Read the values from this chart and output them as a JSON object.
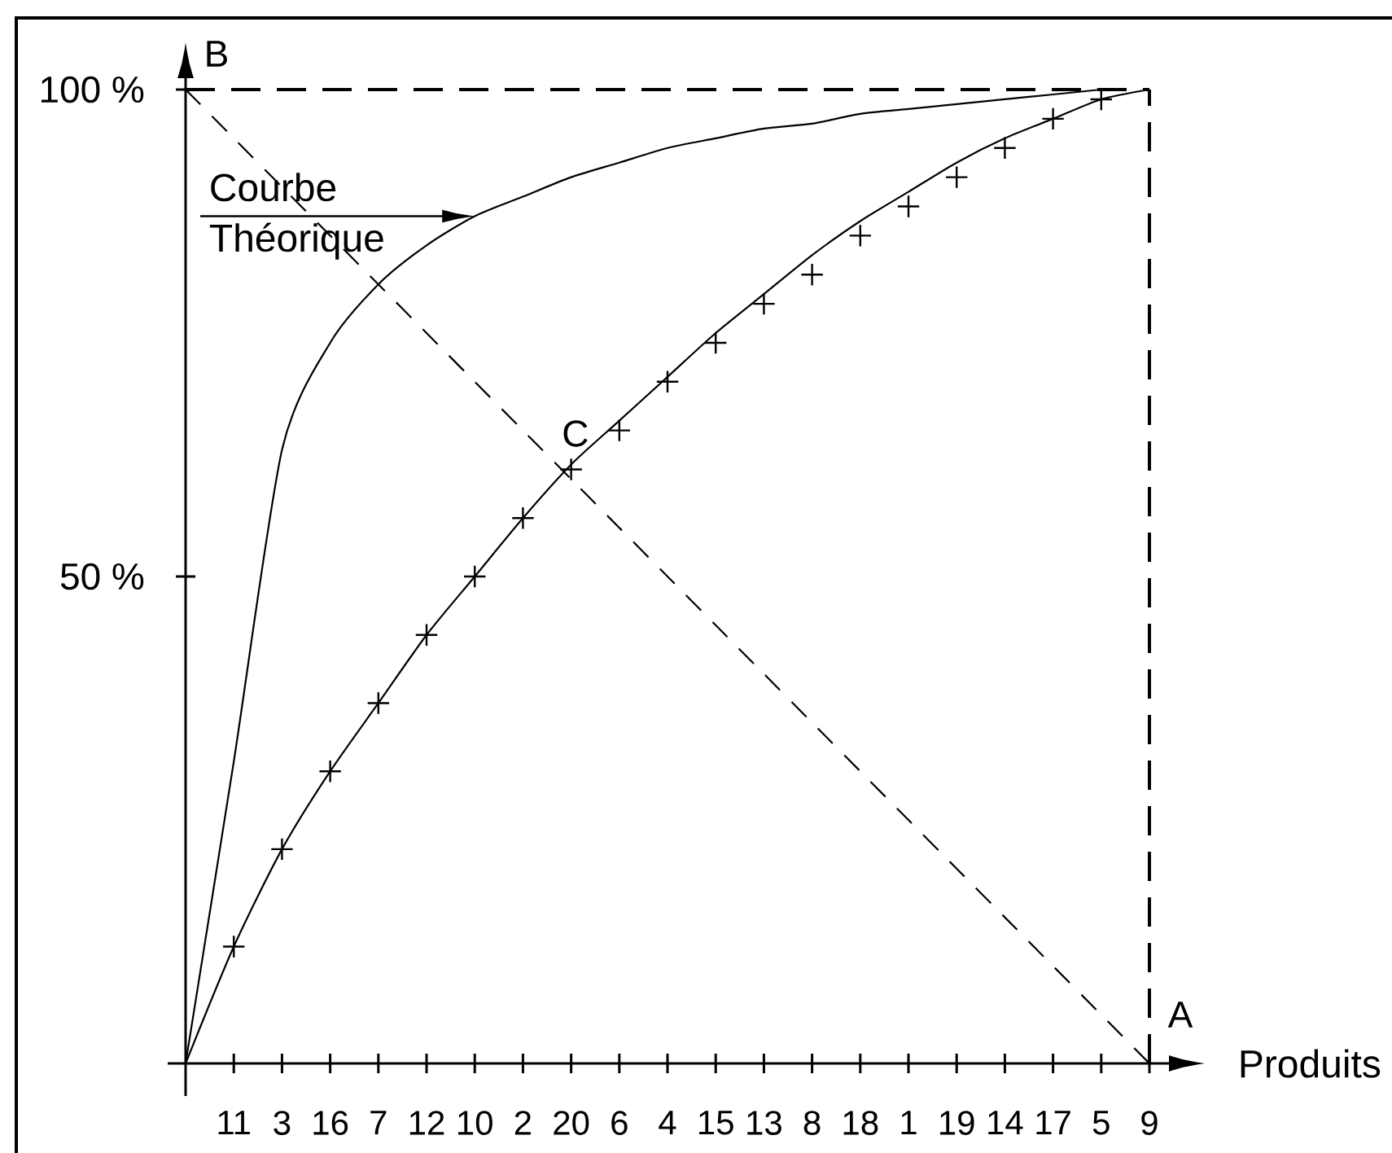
{
  "chart_data": {
    "type": "line",
    "xlabel": "Produits",
    "categories": [
      null,
      "11",
      "3",
      "16",
      "7",
      "12",
      "10",
      "2",
      "20",
      "6",
      "4",
      "15",
      "13",
      "8",
      "18",
      "1",
      "19",
      "14",
      "17",
      "5",
      "9"
    ],
    "ylim": [
      0,
      100
    ],
    "yticks": [
      {
        "value": 50,
        "label": "50 %"
      },
      {
        "value": 100,
        "label": "100 %"
      }
    ],
    "ref_lines": [
      {
        "axis": "y",
        "value": 100,
        "color": "#000000",
        "line_style": "dashed"
      },
      {
        "axis": "x",
        "value": "9",
        "color": "#000000",
        "line_style": "dashed"
      }
    ],
    "series": [
      {
        "color": "#000000",
        "line_style": "dashed",
        "marker": "none",
        "values": [
          100,
          95,
          90,
          85,
          80,
          75,
          70,
          65,
          60,
          55,
          50,
          45,
          40,
          35,
          30,
          25,
          20,
          15,
          10,
          5,
          0
        ]
      },
      {
        "color": "#000000",
        "line_style": "solid",
        "marker": "none",
        "values": [
          0,
          31,
          63,
          74,
          80,
          84,
          87,
          89,
          91,
          92.5,
          94,
          95,
          96,
          96.5,
          97.5,
          98,
          98.5,
          99,
          99.5,
          100,
          null
        ]
      },
      {
        "color": "#000000",
        "line_style": "solid",
        "marker": "none",
        "values": [
          0,
          12,
          22,
          30,
          37,
          44,
          50,
          56,
          61.5,
          66,
          70.5,
          75,
          79,
          83,
          86.5,
          89.5,
          92.5,
          95,
          97,
          99,
          100
        ]
      },
      {
        "type": "scatter",
        "color": "#000000",
        "marker": "cross",
        "values": [
          null,
          12,
          22,
          30,
          37,
          44,
          50,
          56,
          61,
          65,
          70,
          74,
          78,
          81,
          85,
          88,
          91,
          94,
          97,
          99,
          null
        ]
      }
    ],
    "annotations": [
      {
        "text": "Courbe Théorique",
        "x": "10",
        "y": 87
      },
      {
        "text": "B",
        "y": 100
      },
      {
        "text": "C",
        "x": "20",
        "y": 61
      },
      {
        "text": "A",
        "x": "9",
        "y": 0
      }
    ]
  }
}
